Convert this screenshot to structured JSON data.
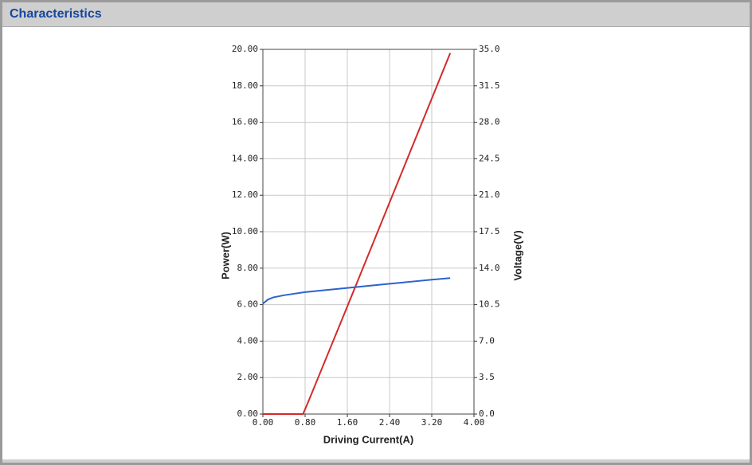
{
  "header": {
    "title": "Characteristics"
  },
  "chart_data": {
    "type": "line",
    "xlabel": "Driving Current(A)",
    "ylabel": "Power(W)",
    "y2label": "Voltage(V)",
    "xlim": [
      0,
      4
    ],
    "ylim": [
      0,
      20
    ],
    "y2lim": [
      0,
      35
    ],
    "xticks": [
      {
        "value": 0,
        "label": "0.00"
      },
      {
        "value": 0.8,
        "label": "0.80"
      },
      {
        "value": 1.6,
        "label": "1.60"
      },
      {
        "value": 2.4,
        "label": "2.40"
      },
      {
        "value": 3.2,
        "label": "3.20"
      },
      {
        "value": 4,
        "label": "4.00"
      }
    ],
    "yticks": [
      {
        "value": 0,
        "label": "0.00"
      },
      {
        "value": 2,
        "label": "2.00"
      },
      {
        "value": 4,
        "label": "4.00"
      },
      {
        "value": 6,
        "label": "6.00"
      },
      {
        "value": 8,
        "label": "8.00"
      },
      {
        "value": 10,
        "label": "10.00"
      },
      {
        "value": 12,
        "label": "12.00"
      },
      {
        "value": 14,
        "label": "14.00"
      },
      {
        "value": 16,
        "label": "16.00"
      },
      {
        "value": 18,
        "label": "18.00"
      },
      {
        "value": 20,
        "label": "20.00"
      }
    ],
    "y2ticks": [
      {
        "value": 0,
        "label": "0.0"
      },
      3.5,
      {
        "value": 7,
        "label": "7.0"
      },
      10.5,
      {
        "value": 14,
        "label": "14.0"
      },
      17.5,
      {
        "value": 21,
        "label": "21.0"
      },
      24.5,
      {
        "value": 28,
        "label": "28.0"
      },
      31.5,
      {
        "value": 35,
        "label": "35.0"
      }
    ],
    "grid": true,
    "series": [
      {
        "color": "#d42a2a",
        "x": [
          0,
          0.4,
          0.76,
          0.85,
          1.6,
          2.4,
          3.2,
          3.55
        ],
        "values": [
          0,
          0,
          0,
          0.6,
          5.9,
          11.6,
          17.3,
          19.8
        ]
      },
      {
        "color": "#2b62cf",
        "axis": "y2",
        "x": [
          0,
          0.1,
          0.2,
          0.4,
          0.8,
          1.2,
          1.6,
          2.0,
          2.4,
          2.8,
          3.2,
          3.55
        ],
        "values": [
          10.6,
          11.0,
          11.2,
          11.4,
          11.7,
          11.9,
          12.1,
          12.3,
          12.5,
          12.7,
          12.9,
          13.05
        ]
      }
    ]
  }
}
